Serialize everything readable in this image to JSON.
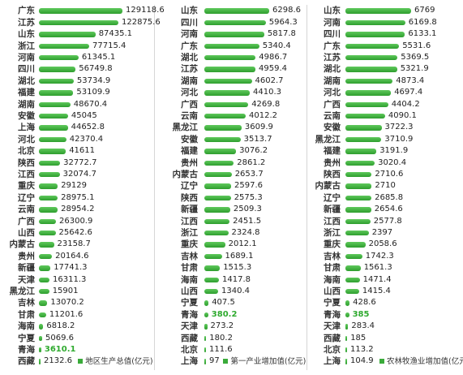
{
  "chart_data": [
    {
      "type": "bar",
      "orientation": "horizontal",
      "legend_label": "地区生产总值(亿元)",
      "categories": [
        "广东",
        "江苏",
        "山东",
        "浙江",
        "河南",
        "四川",
        "湖北",
        "福建",
        "湖南",
        "安徽",
        "上海",
        "河北",
        "北京",
        "陕西",
        "江西",
        "重庆",
        "辽宁",
        "云南",
        "广西",
        "山西",
        "内蒙古",
        "贵州",
        "新疆",
        "天津",
        "黑龙江",
        "吉林",
        "甘肃",
        "海南",
        "宁夏",
        "青海",
        "西藏"
      ],
      "values": [
        129118.6,
        122875.6,
        87435.1,
        77715.4,
        61345.1,
        56749.8,
        53734.9,
        53109.9,
        48670.4,
        45045,
        44652.8,
        42370.4,
        41611,
        32772.7,
        32074.7,
        29129,
        28975.1,
        28954.2,
        26300.9,
        25642.6,
        23158.7,
        20164.6,
        17741.3,
        16311.3,
        15901,
        13070.2,
        11201.6,
        6818.2,
        5069.6,
        3610.1,
        2132.6
      ],
      "labels": [
        "129118.6",
        "122875.6",
        "87435.1",
        "77715.4",
        "61345.1",
        "56749.8",
        "53734.9",
        "53109.9",
        "48670.4",
        "45045",
        "44652.8",
        "42370.4",
        "41611",
        "32772.7",
        "32074.7",
        "29129",
        "28975.1",
        "28954.2",
        "26300.9",
        "25642.6",
        "23158.7",
        "20164.6",
        "17741.3",
        "16311.3",
        "15901",
        "13070.2",
        "11201.6",
        "6818.2",
        "5069.6",
        "3610.1",
        "2132.6"
      ],
      "highlight": [
        "青海"
      ]
    },
    {
      "type": "bar",
      "orientation": "horizontal",
      "legend_label": "第一产业增加值(亿元)",
      "categories": [
        "山东",
        "四川",
        "河南",
        "广东",
        "湖北",
        "江苏",
        "湖南",
        "河北",
        "广西",
        "云南",
        "黑龙江",
        "安徽",
        "福建",
        "贵州",
        "内蒙古",
        "辽宁",
        "陕西",
        "新疆",
        "江西",
        "浙江",
        "重庆",
        "吉林",
        "甘肃",
        "海南",
        "山西",
        "宁夏",
        "青海",
        "天津",
        "西藏",
        "北京",
        "上海"
      ],
      "values": [
        6298.6,
        5964.3,
        5817.8,
        5340.4,
        4986.7,
        4959.4,
        4602.7,
        4410.3,
        4269.8,
        4012.2,
        3609.9,
        3513.7,
        3076.2,
        2861.2,
        2653.7,
        2597.6,
        2575.3,
        2509.3,
        2451.5,
        2324.8,
        2012.1,
        1689.1,
        1515.3,
        1417.8,
        1340.4,
        407.5,
        380.2,
        273.2,
        180.2,
        111.6,
        97
      ],
      "labels": [
        "6298.6",
        "5964.3",
        "5817.8",
        "5340.4",
        "4986.7",
        "4959.4",
        "4602.7",
        "4410.3",
        "4269.8",
        "4012.2",
        "3609.9",
        "3513.7",
        "3076.2",
        "2861.2",
        "2653.7",
        "2597.6",
        "2575.3",
        "2509.3",
        "2451.5",
        "2324.8",
        "2012.1",
        "1689.1",
        "1515.3",
        "1417.8",
        "1340.4",
        "407.5",
        "380.2",
        "273.2",
        "180.2",
        "111.6",
        "97"
      ],
      "highlight": [
        "青海"
      ]
    },
    {
      "type": "bar",
      "orientation": "horizontal",
      "legend_label": "农林牧渔业增加值(亿元)",
      "categories": [
        "山东",
        "河南",
        "四川",
        "广东",
        "江苏",
        "湖北",
        "湖南",
        "河北",
        "广西",
        "云南",
        "安徽",
        "黑龙江",
        "福建",
        "贵州",
        "陕西",
        "内蒙古",
        "辽宁",
        "新疆",
        "江西",
        "浙江",
        "重庆",
        "吉林",
        "甘肃",
        "海南",
        "山西",
        "宁夏",
        "青海",
        "天津",
        "西藏",
        "北京",
        "上海"
      ],
      "values": [
        6769,
        6169.8,
        6133.1,
        5531.6,
        5369.5,
        5321.9,
        4873.4,
        4697.4,
        4404.2,
        4090.1,
        3722.3,
        3710.9,
        3191.9,
        3020.4,
        2710.6,
        2710,
        2685.8,
        2654.6,
        2577.8,
        2397,
        2058.6,
        1742.3,
        1561.3,
        1471.4,
        1415.4,
        428.6,
        385,
        283.4,
        185,
        113.2,
        104.9
      ],
      "labels": [
        "6769",
        "6169.8",
        "6133.1",
        "5531.6",
        "5369.5",
        "5321.9",
        "4873.4",
        "4697.4",
        "4404.2",
        "4090.1",
        "3722.3",
        "3710.9",
        "3191.9",
        "3020.4",
        "2710.6",
        "2710",
        "2685.8",
        "2654.6",
        "2577.8",
        "2397",
        "2058.6",
        "1742.3",
        "1561.3",
        "1471.4",
        "1415.4",
        "428.6",
        "385",
        "283.4",
        "185",
        "113.2",
        "104.9"
      ],
      "highlight": [
        "青海"
      ]
    }
  ],
  "colors": {
    "bar": "#3aab3a",
    "highlight_text": "#2faa2f",
    "text": "#222222"
  }
}
